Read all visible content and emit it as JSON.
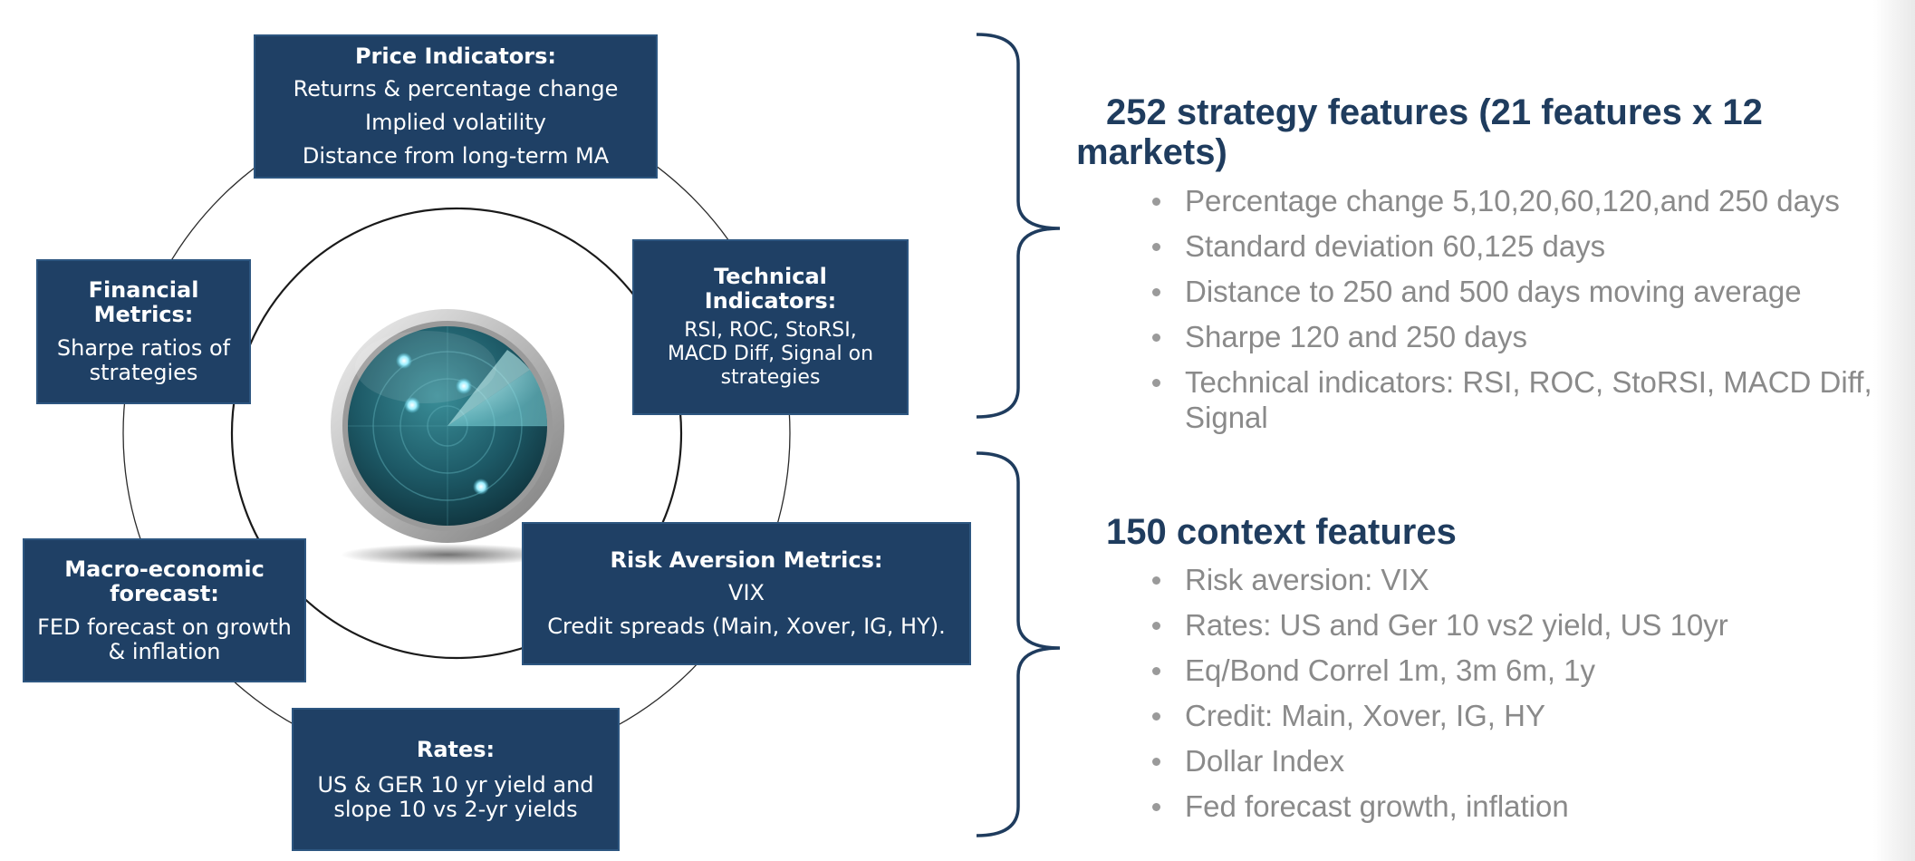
{
  "diagram": {
    "boxes": {
      "price": {
        "title": "Price Indicators:",
        "lines": [
          "Returns & percentage change",
          "Implied volatility",
          "Distance from long-term MA"
        ]
      },
      "technical": {
        "title_lines": [
          "Technical",
          "Indicators:"
        ],
        "lines": [
          "RSI, ROC, StoRSI,",
          "MACD Diff, Signal on",
          "strategies"
        ]
      },
      "financial": {
        "title_lines": [
          "Financial",
          "Metrics:"
        ],
        "lines": [
          "Sharpe ratios of",
          "strategies"
        ]
      },
      "macro": {
        "title_lines": [
          "Macro-economic",
          "forecast:"
        ],
        "lines": [
          "FED forecast on growth",
          "& inflation"
        ]
      },
      "risk": {
        "title": "Risk Aversion Metrics:",
        "lines": [
          "VIX",
          "Credit spreads (Main, Xover, IG, HY)."
        ]
      },
      "rates": {
        "title": "Rates:",
        "lines": [
          "US & GER 10 yr yield and",
          "slope 10 vs 2-yr yields"
        ]
      }
    },
    "center_icon": "radar-icon"
  },
  "sections": [
    {
      "heading_lines": [
        "252 strategy features (21 features x 12",
        "markets)"
      ],
      "bullets": [
        "Percentage change 5,10,20,60,120,and 250 days",
        "Standard  deviation  60,125 days",
        "Distance to 250 and 500 days moving average",
        "Sharpe 120 and 250 days",
        "Technical indicators: RSI, ROC, StoRSI, MACD Diff, Signal"
      ]
    },
    {
      "heading_lines": [
        "150 context features"
      ],
      "bullets": [
        "Risk aversion: VIX",
        "Rates: US and Ger 10 vs2 yield, US 10yr",
        "Eq/Bond Correl 1m, 3m 6m, 1y",
        "Credit: Main, Xover, IG, HY",
        "Dollar Index",
        "Fed forecast growth, inflation"
      ]
    }
  ],
  "colors": {
    "box_fill": "#1f4065",
    "heading": "#1f3c5e",
    "bullet_text": "#8a8a8a",
    "brace": "#1f3c5e"
  }
}
